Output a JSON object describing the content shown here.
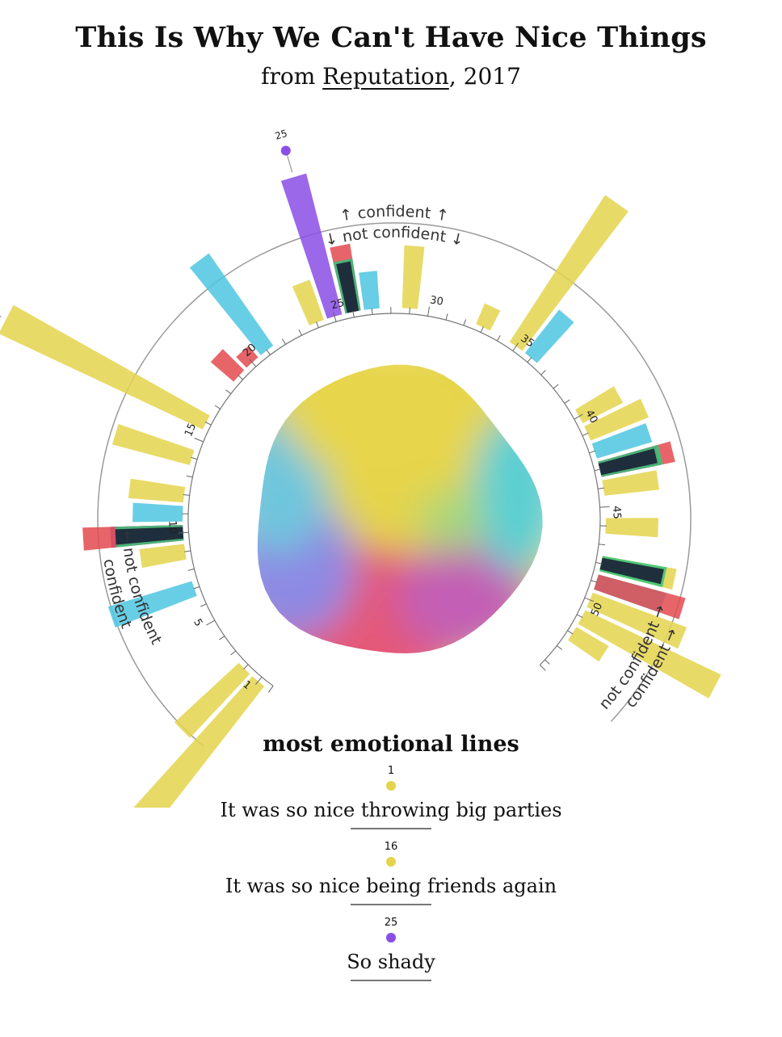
{
  "title": "This Is Why We Can't Have Nice Things",
  "subtitle": {
    "prefix": "from ",
    "album": "Reputation",
    "suffix": ", 2017"
  },
  "colors": {
    "yellow": "#e4d44c",
    "cyan": "#4ec6e0",
    "purple": "#8a4de6",
    "red": "#e34a4f",
    "dark": "#1a1f36",
    "green": "#34c479"
  },
  "confidence_labels": {
    "confident": "confident",
    "not_confident": "not confident"
  },
  "chart_data": {
    "type": "radial bar",
    "title": "This Is Why We Can't Have Nice Things",
    "subtitle": "from Reputation, 2017",
    "line_range": [
      1,
      54
    ],
    "tick_labels": [
      "1",
      "5",
      "10",
      "15",
      "20",
      "25",
      "30",
      "35",
      "40",
      "45",
      "50"
    ],
    "emotions": [
      {
        "color": "#e4d44c",
        "values": [
          [
            1,
            8
          ],
          [
            2,
            3.5
          ],
          [
            9,
            1.8
          ],
          [
            12,
            2.2
          ],
          [
            14,
            3.2
          ],
          [
            16,
            9
          ],
          [
            24,
            1.7
          ],
          [
            29,
            2.5
          ],
          [
            33,
            0.9
          ],
          [
            35,
            7
          ],
          [
            40,
            1.8
          ],
          [
            41,
            2.5
          ],
          [
            44,
            2.2
          ],
          [
            46,
            2.1
          ],
          [
            48,
            3
          ],
          [
            50,
            4
          ],
          [
            51,
            6
          ],
          [
            52,
            1.5
          ]
        ]
      },
      {
        "color": "#4ec6e0",
        "values": [
          [
            7,
            3.5
          ],
          [
            11,
            2
          ],
          [
            21,
            4.5
          ],
          [
            27,
            1.5
          ],
          [
            36,
            2.2
          ],
          [
            42,
            2.3
          ],
          [
            49,
            2.8
          ]
        ]
      },
      {
        "color": "#8a4de6",
        "values": [
          [
            10,
            2.9
          ],
          [
            25,
            5.8
          ],
          [
            26,
            2.1
          ],
          [
            43,
            2.4
          ]
        ]
      },
      {
        "color": "#e34a4f",
        "values": [
          [
            10,
            4
          ],
          [
            19,
            1.2
          ],
          [
            20,
            0.6
          ],
          [
            26,
            2.7
          ],
          [
            43,
            3
          ],
          [
            49,
            3.6
          ]
        ]
      },
      {
        "color": "#34c479",
        "values": [
          [
            10,
            2.7
          ],
          [
            26,
            2.1
          ],
          [
            43,
            2.5
          ],
          [
            48,
            2.6
          ]
        ]
      },
      {
        "color": "#1a1f36",
        "values": [
          [
            10,
            2.7
          ],
          [
            26,
            2
          ],
          [
            43,
            2.3
          ],
          [
            48,
            2.5
          ]
        ]
      }
    ]
  },
  "emotional_lines": {
    "heading": "most emotional lines",
    "items": [
      {
        "number": "1",
        "text": "It was so nice throwing big parties",
        "color": "#e4d44c"
      },
      {
        "number": "16",
        "text": "It was so nice being friends again",
        "color": "#e4d44c"
      },
      {
        "number": "25",
        "text": "So shady",
        "color": "#8a4de6"
      }
    ]
  }
}
